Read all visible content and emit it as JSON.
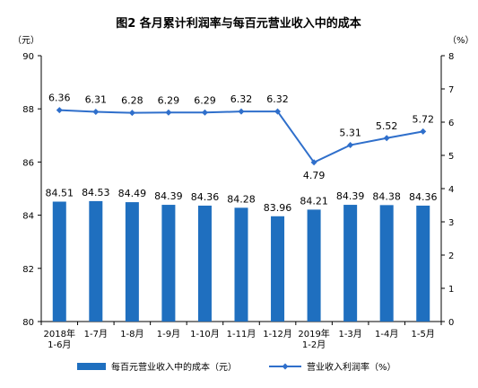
{
  "chart_data": {
    "title": "图2  各月累计利润率与每百元营业收入中的成本",
    "left_unit": "（元）",
    "right_unit": "（%）",
    "type": "bar+line",
    "categories": [
      [
        "2018年",
        "1-6月"
      ],
      [
        "1-7月"
      ],
      [
        "1-8月"
      ],
      [
        "1-9月"
      ],
      [
        "1-10月"
      ],
      [
        "1-11月"
      ],
      [
        "1-12月"
      ],
      [
        "2019年",
        "1-2月"
      ],
      [
        "1-3月"
      ],
      [
        "1-4月"
      ],
      [
        "1-5月"
      ]
    ],
    "series": [
      {
        "name": "每百元营业收入中的成本（元）",
        "type": "bar",
        "axis": "left",
        "color": "#1f6fbf",
        "values": [
          84.51,
          84.53,
          84.49,
          84.39,
          84.36,
          84.28,
          83.96,
          84.21,
          84.39,
          84.38,
          84.36
        ],
        "labels": [
          "84.51",
          "84.53",
          "84.49",
          "84.39",
          "84.36",
          "84.28",
          "83.96",
          "84.21",
          "84.39",
          "84.38",
          "84.36"
        ]
      },
      {
        "name": "营业收入利润率（%）",
        "type": "line",
        "axis": "right",
        "color": "#2f6fcb",
        "values": [
          6.36,
          6.31,
          6.28,
          6.29,
          6.29,
          6.32,
          6.32,
          4.79,
          5.31,
          5.52,
          5.72
        ],
        "labels": [
          "6.36",
          "6.31",
          "6.28",
          "6.29",
          "6.29",
          "6.32",
          "6.32",
          "4.79",
          "5.31",
          "5.52",
          "5.72"
        ]
      }
    ],
    "left_axis": {
      "min": 80,
      "max": 90,
      "ticks": [
        80,
        82,
        84,
        86,
        88,
        90
      ]
    },
    "right_axis": {
      "min": 0,
      "max": 8,
      "ticks": [
        0,
        1,
        2,
        3,
        4,
        5,
        6,
        7,
        8
      ]
    },
    "grid": false,
    "legend_position": "bottom"
  }
}
